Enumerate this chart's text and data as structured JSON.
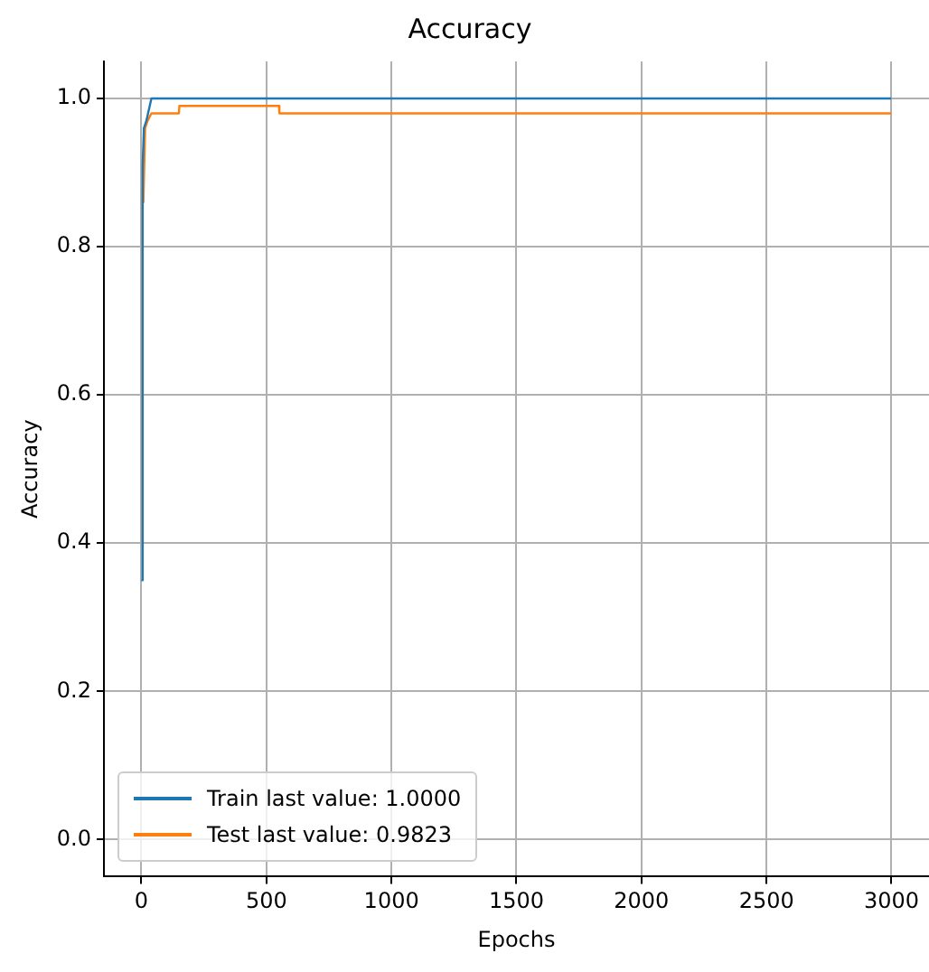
{
  "chart_data": {
    "type": "line",
    "title": "Accuracy",
    "xlabel": "Epochs",
    "ylabel": "Accuracy",
    "xlim": [
      -150,
      3150
    ],
    "xticks": [
      0,
      500,
      1000,
      1500,
      2000,
      2500,
      3000
    ],
    "ylim": [
      -0.05,
      1.05
    ],
    "yticks": [
      {
        "value": 0,
        "label": "0.0"
      },
      0.2,
      0.4,
      0.6,
      0.8,
      {
        "value": 1,
        "label": "1.0"
      }
    ],
    "grid": true,
    "legend": "bottom left",
    "marker": "none",
    "line_style": "solid",
    "series": [
      {
        "name": "Train last value: 1.0000",
        "color": "#1f77b4",
        "x": [
          0,
          5,
          10,
          20,
          40,
          2999
        ],
        "values": [
          0.35,
          0.91,
          0.96,
          0.97,
          1.0,
          1.0
        ]
      },
      {
        "name": "Test last value: 0.9823",
        "color": "#ff7f0e",
        "x": [
          0,
          5,
          8,
          15,
          25,
          40,
          150,
          152,
          550,
          552,
          2999
        ],
        "values": [
          0.4,
          0.88,
          0.86,
          0.96,
          0.97,
          0.98,
          0.98,
          0.99,
          0.99,
          0.98,
          0.98
        ]
      }
    ]
  }
}
